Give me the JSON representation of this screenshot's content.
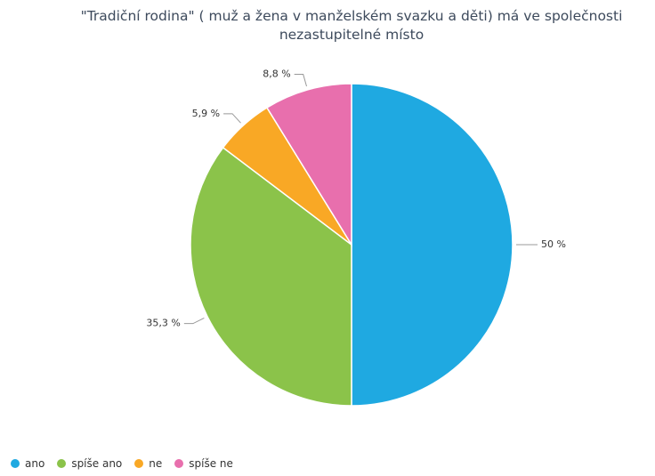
{
  "chart_data": {
    "type": "pie",
    "title": "\"Tradiční rodina\" ( muž a žena v manželském svazku a děti) má ve společnosti nezastupitelné místo",
    "categories": [
      "ano",
      "spíše ano",
      "ne",
      "spíše ne"
    ],
    "values": [
      50,
      35.3,
      5.9,
      8.8
    ],
    "value_labels": [
      "50 %",
      "35,3 %",
      "5,9 %",
      "8,8 %"
    ],
    "colors": [
      "#1fa9e1",
      "#8bc34a",
      "#f9a825",
      "#e86fad"
    ],
    "legend": "bottom-left"
  }
}
